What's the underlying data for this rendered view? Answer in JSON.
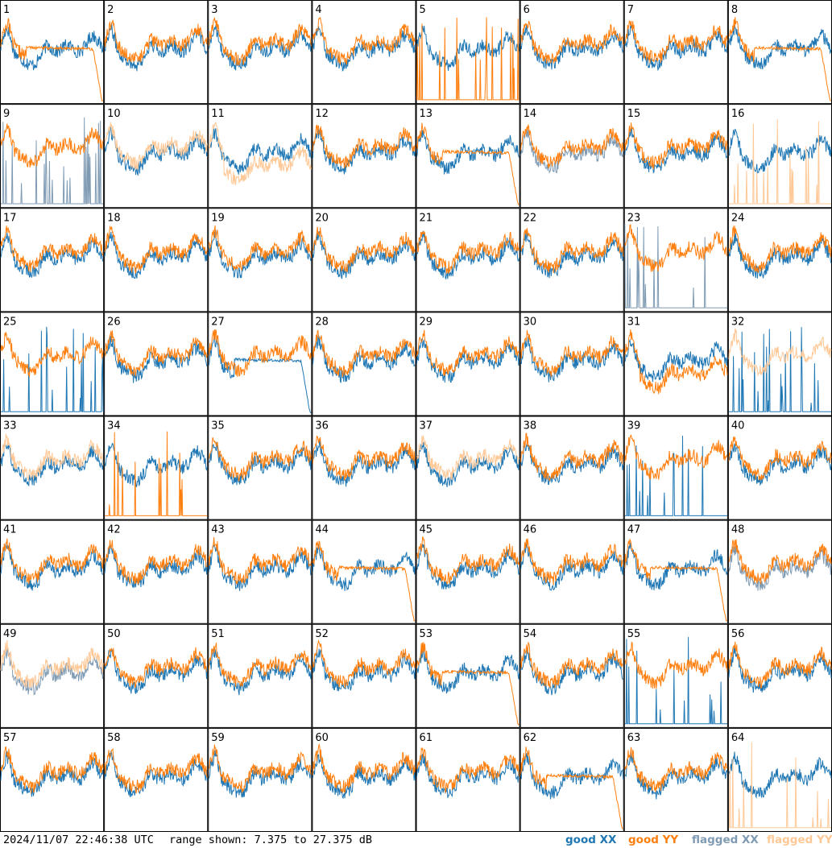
{
  "footer": {
    "timestamp": "2024/11/07 22:46:38 UTC",
    "range_text": "range shown: 7.375 to 27.375 dB"
  },
  "legend": [
    {
      "label": "good XX",
      "color": "#1f77b4"
    },
    {
      "label": "good YY",
      "color": "#ff7f0e"
    },
    {
      "label": "flagged XX",
      "color": "#7f9bb4"
    },
    {
      "label": "flagged YY",
      "color": "#ffc896"
    }
  ],
  "chart_data": {
    "type": "line",
    "layout": "small-multiples 8x8",
    "ylim": [
      7.375,
      27.375
    ],
    "y_unit": "dB",
    "panel_count": 64,
    "panels": [
      {
        "label": "1",
        "xx": "good",
        "yy": "good",
        "yy_shape": "dropoff"
      },
      {
        "label": "2",
        "xx": "good",
        "yy": "good",
        "yy_shape": "normal"
      },
      {
        "label": "3",
        "xx": "good",
        "yy": "good",
        "yy_shape": "normal"
      },
      {
        "label": "4",
        "xx": "good",
        "yy": "good",
        "yy_shape": "normal"
      },
      {
        "label": "5",
        "xx": "good",
        "yy": "good",
        "yy_shape": "spikes"
      },
      {
        "label": "6",
        "xx": "good",
        "yy": "good",
        "yy_shape": "normal"
      },
      {
        "label": "7",
        "xx": "good",
        "yy": "good",
        "yy_shape": "normal"
      },
      {
        "label": "8",
        "xx": "good",
        "yy": "good",
        "yy_shape": "dropoff"
      },
      {
        "label": "9",
        "xx": "flagged",
        "yy": "good",
        "xx_shape": "spikes"
      },
      {
        "label": "10",
        "xx": "good",
        "yy": "flagged",
        "yy_shape": "normal"
      },
      {
        "label": "11",
        "xx": "good",
        "yy": "flagged",
        "yy_shape": "low"
      },
      {
        "label": "12",
        "xx": "good",
        "yy": "good",
        "yy_shape": "normal"
      },
      {
        "label": "13",
        "xx": "good",
        "yy": "good",
        "yy_shape": "dropoff"
      },
      {
        "label": "14",
        "xx": "flagged",
        "yy": "good",
        "yy_shape": "normal"
      },
      {
        "label": "15",
        "xx": "good",
        "yy": "good",
        "yy_shape": "normal"
      },
      {
        "label": "16",
        "xx": "good",
        "yy": "flagged",
        "yy_shape": "spikes"
      },
      {
        "label": "17",
        "xx": "good",
        "yy": "good",
        "yy_shape": "normal"
      },
      {
        "label": "18",
        "xx": "good",
        "yy": "good",
        "yy_shape": "normal"
      },
      {
        "label": "19",
        "xx": "good",
        "yy": "good",
        "yy_shape": "normal"
      },
      {
        "label": "20",
        "xx": "good",
        "yy": "good",
        "yy_shape": "normal"
      },
      {
        "label": "21",
        "xx": "good",
        "yy": "good",
        "yy_shape": "normal"
      },
      {
        "label": "22",
        "xx": "good",
        "yy": "good",
        "yy_shape": "normal"
      },
      {
        "label": "23",
        "xx": "flagged",
        "yy": "good",
        "xx_shape": "spikes"
      },
      {
        "label": "24",
        "xx": "good",
        "yy": "good",
        "yy_shape": "normal"
      },
      {
        "label": "25",
        "xx": "good",
        "yy": "good",
        "xx_shape": "spikes"
      },
      {
        "label": "26",
        "xx": "good",
        "yy": "good",
        "yy_shape": "normal"
      },
      {
        "label": "27",
        "xx": "good",
        "yy": "good",
        "xx_shape": "dropoff"
      },
      {
        "label": "28",
        "xx": "good",
        "yy": "good",
        "yy_shape": "normal"
      },
      {
        "label": "29",
        "xx": "good",
        "yy": "good",
        "yy_shape": "normal"
      },
      {
        "label": "30",
        "xx": "good",
        "yy": "good",
        "yy_shape": "normal"
      },
      {
        "label": "31",
        "xx": "good",
        "yy": "good",
        "yy_shape": "low"
      },
      {
        "label": "32",
        "xx": "good",
        "yy": "flagged",
        "xx_shape": "spikes"
      },
      {
        "label": "33",
        "xx": "good",
        "yy": "flagged",
        "yy_shape": "normal"
      },
      {
        "label": "34",
        "xx": "good",
        "yy": "good",
        "yy_shape": "spikes"
      },
      {
        "label": "35",
        "xx": "good",
        "yy": "good",
        "yy_shape": "normal"
      },
      {
        "label": "36",
        "xx": "good",
        "yy": "good",
        "yy_shape": "normal"
      },
      {
        "label": "37",
        "xx": "good",
        "yy": "flagged",
        "yy_shape": "normal"
      },
      {
        "label": "38",
        "xx": "good",
        "yy": "good",
        "yy_shape": "normal"
      },
      {
        "label": "39",
        "xx": "good",
        "yy": "good",
        "xx_shape": "spikes"
      },
      {
        "label": "40",
        "xx": "good",
        "yy": "good",
        "yy_shape": "normal"
      },
      {
        "label": "41",
        "xx": "good",
        "yy": "good",
        "yy_shape": "normal"
      },
      {
        "label": "42",
        "xx": "good",
        "yy": "good",
        "yy_shape": "normal"
      },
      {
        "label": "43",
        "xx": "good",
        "yy": "good",
        "yy_shape": "normal"
      },
      {
        "label": "44",
        "xx": "good",
        "yy": "good",
        "yy_shape": "dropoff"
      },
      {
        "label": "45",
        "xx": "good",
        "yy": "good",
        "yy_shape": "normal"
      },
      {
        "label": "46",
        "xx": "good",
        "yy": "good",
        "yy_shape": "normal"
      },
      {
        "label": "47",
        "xx": "good",
        "yy": "good",
        "yy_shape": "dropoff"
      },
      {
        "label": "48",
        "xx": "flagged",
        "yy": "good",
        "yy_shape": "normal"
      },
      {
        "label": "49",
        "xx": "flagged",
        "yy": "flagged",
        "yy_shape": "normal"
      },
      {
        "label": "50",
        "xx": "good",
        "yy": "good",
        "yy_shape": "normal"
      },
      {
        "label": "51",
        "xx": "good",
        "yy": "good",
        "yy_shape": "normal"
      },
      {
        "label": "52",
        "xx": "good",
        "yy": "good",
        "yy_shape": "normal"
      },
      {
        "label": "53",
        "xx": "good",
        "yy": "good",
        "yy_shape": "dropoff"
      },
      {
        "label": "54",
        "xx": "good",
        "yy": "good",
        "yy_shape": "normal"
      },
      {
        "label": "55",
        "xx": "good",
        "yy": "good",
        "xx_shape": "spikes"
      },
      {
        "label": "56",
        "xx": "good",
        "yy": "good",
        "yy_shape": "normal"
      },
      {
        "label": "57",
        "xx": "good",
        "yy": "good",
        "yy_shape": "normal"
      },
      {
        "label": "58",
        "xx": "good",
        "yy": "good",
        "yy_shape": "normal"
      },
      {
        "label": "59",
        "xx": "good",
        "yy": "good",
        "yy_shape": "normal"
      },
      {
        "label": "60",
        "xx": "good",
        "yy": "good",
        "yy_shape": "normal"
      },
      {
        "label": "61",
        "xx": "good",
        "yy": "good",
        "yy_shape": "normal"
      },
      {
        "label": "62",
        "xx": "good",
        "yy": "good",
        "yy_shape": "dropoff"
      },
      {
        "label": "63",
        "xx": "good",
        "yy": "good",
        "yy_shape": "normal"
      },
      {
        "label": "64",
        "xx": "good",
        "yy": "flagged",
        "yy_shape": "spikes"
      }
    ]
  }
}
